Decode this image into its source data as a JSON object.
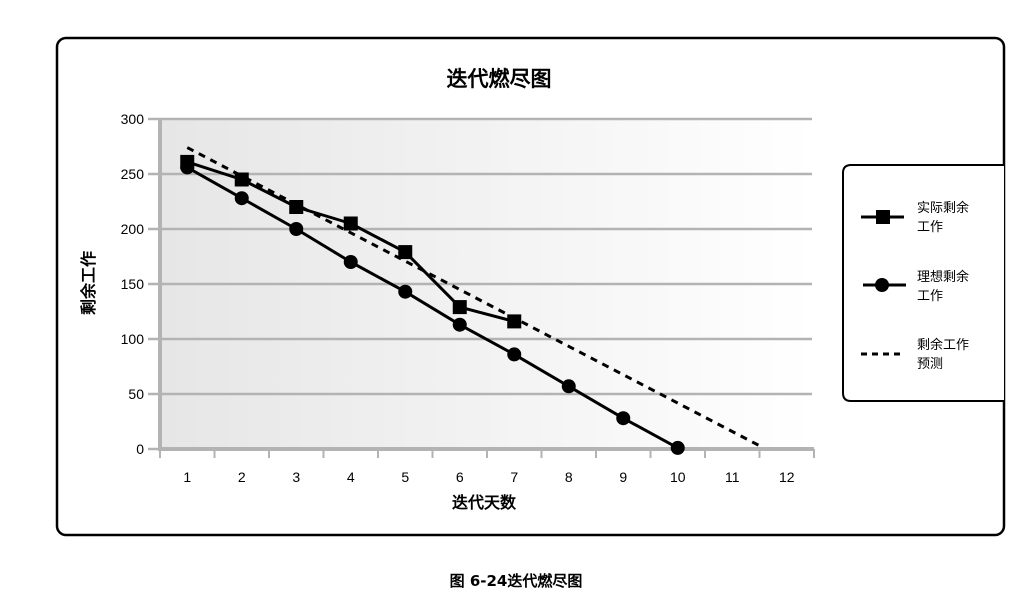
{
  "caption": "图 6-24迭代燃尽图",
  "legend": {
    "items": [
      {
        "label_line1": "实际剩余",
        "label_line2": "工作",
        "marker": "square-marker",
        "line": "solid"
      },
      {
        "label_line1": "理想剩余",
        "label_line2": "工作",
        "marker": "circle-marker",
        "line": "solid"
      },
      {
        "label_line1": "剩余工作",
        "label_line2": "预测",
        "marker": "none",
        "line": "dashed"
      }
    ]
  },
  "colors": {
    "series": "#000000",
    "grid": "#b3b3b3",
    "plot_bg_left": "#e6e6e6",
    "plot_bg_right": "#ffffff",
    "frame": "#000000"
  },
  "chart_data": {
    "type": "line",
    "title": "迭代燃尽图",
    "xlabel": "迭代天数",
    "ylabel": "剩余工作",
    "categories": [
      "1",
      "2",
      "3",
      "4",
      "5",
      "6",
      "7",
      "8",
      "9",
      "10",
      "11",
      "12"
    ],
    "x": [
      1,
      2,
      3,
      4,
      5,
      6,
      7,
      8,
      9,
      10,
      11,
      12
    ],
    "yticks": [
      0,
      50,
      100,
      150,
      200,
      250,
      300
    ],
    "ylim": [
      0,
      300
    ],
    "grid": true,
    "legend_position": "right",
    "series": [
      {
        "name": "实际剩余工作",
        "marker": "square",
        "style": "solid",
        "x": [
          1,
          2,
          3,
          4,
          5,
          6,
          7
        ],
        "values": [
          261,
          245,
          220,
          205,
          179,
          129,
          116
        ]
      },
      {
        "name": "理想剩余工作",
        "marker": "circle",
        "style": "solid",
        "x": [
          1,
          2,
          3,
          4,
          5,
          6,
          7,
          8,
          9,
          10
        ],
        "values": [
          256,
          228,
          200,
          170,
          143,
          113,
          86,
          57,
          28,
          1
        ]
      },
      {
        "name": "剩余工作预测",
        "marker": "none",
        "style": "dashed",
        "x": [
          1,
          11.5
        ],
        "values": [
          274,
          3
        ]
      }
    ]
  }
}
